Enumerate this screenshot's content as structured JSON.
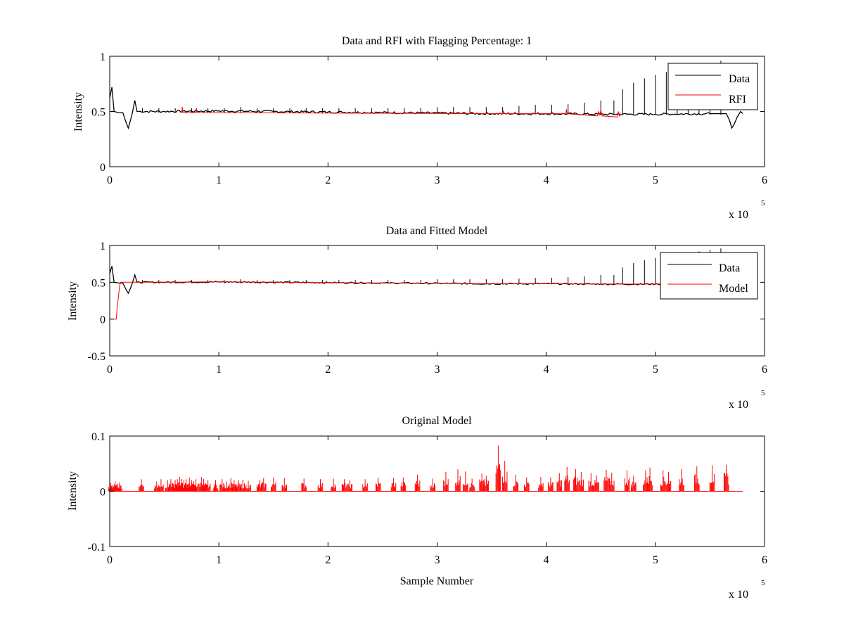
{
  "figure": {
    "background": "#ffffff",
    "colors": {
      "data": "#000000",
      "rfi": "#ff0000",
      "model": "#ff0000",
      "axes": "#000000"
    }
  },
  "chart_data": [
    {
      "type": "line",
      "title": "Data and RFI with Flagging Percentage: 1",
      "xlabel": "",
      "ylabel": "Intensity",
      "xlim": [
        0,
        600000
      ],
      "ylim": [
        0,
        1
      ],
      "xticks": [
        0,
        100000,
        200000,
        300000,
        400000,
        500000,
        600000
      ],
      "xtick_labels": [
        "0",
        "1",
        "2",
        "3",
        "4",
        "5",
        "6"
      ],
      "yticks": [
        0,
        0.5,
        1
      ],
      "ytick_labels": [
        "0",
        "0.5",
        "1"
      ],
      "x_multiplier": {
        "base": "x 10",
        "exponent": "5"
      },
      "grid": false,
      "legend": {
        "position": "top-right",
        "entries": [
          "Data",
          "RFI"
        ]
      },
      "series": [
        {
          "name": "Data",
          "color": "#000000",
          "x": [
            0,
            2000,
            4000,
            8000,
            12000,
            15000,
            17000,
            19000,
            21000,
            23000,
            25000,
            50000,
            100000,
            150000,
            200000,
            250000,
            300000,
            350000,
            400000,
            450000,
            500000,
            550000,
            565000,
            568000,
            570000,
            572000,
            575000,
            578000,
            580000
          ],
          "y": [
            0.62,
            0.72,
            0.5,
            0.49,
            0.49,
            0.4,
            0.35,
            0.42,
            0.5,
            0.6,
            0.5,
            0.5,
            0.505,
            0.5,
            0.495,
            0.49,
            0.485,
            0.48,
            0.48,
            0.475,
            0.475,
            0.48,
            0.48,
            0.42,
            0.35,
            0.38,
            0.45,
            0.5,
            0.48
          ],
          "spike_x": [
            30000,
            45000,
            60000,
            75000,
            90000,
            105000,
            120000,
            135000,
            150000,
            165000,
            180000,
            195000,
            210000,
            225000,
            240000,
            255000,
            270000,
            285000,
            300000,
            315000,
            330000,
            345000,
            360000,
            375000,
            390000,
            405000,
            420000,
            435000,
            450000,
            462000,
            470000,
            480000,
            490000,
            500000,
            510000,
            520000,
            530000,
            540000,
            550000,
            560000
          ],
          "spike_y": [
            0.53,
            0.53,
            0.53,
            0.53,
            0.53,
            0.53,
            0.54,
            0.53,
            0.53,
            0.53,
            0.53,
            0.53,
            0.53,
            0.53,
            0.53,
            0.53,
            0.53,
            0.53,
            0.54,
            0.54,
            0.54,
            0.54,
            0.54,
            0.55,
            0.56,
            0.56,
            0.57,
            0.58,
            0.6,
            0.6,
            0.7,
            0.76,
            0.8,
            0.83,
            0.86,
            0.88,
            0.9,
            0.92,
            0.94,
            0.96
          ]
        },
        {
          "name": "RFI",
          "color": "#ff0000",
          "x": [
            66000,
            66500,
            67000,
            79000,
            79500,
            80000,
            360000,
            360500,
            361000,
            418000,
            418500,
            419000,
            447000,
            448000,
            449000,
            450000,
            451000,
            465000,
            466000,
            467000,
            468000
          ],
          "y": [
            0.49,
            0.54,
            0.49,
            0.49,
            0.53,
            0.49,
            0.48,
            0.51,
            0.48,
            0.48,
            0.52,
            0.48,
            0.46,
            0.5,
            0.47,
            0.51,
            0.46,
            0.45,
            0.5,
            0.46,
            0.49
          ]
        }
      ]
    },
    {
      "type": "line",
      "title": "Data and Fitted Model",
      "xlabel": "",
      "ylabel": "Intensity",
      "xlim": [
        0,
        600000
      ],
      "ylim": [
        -0.5,
        1
      ],
      "xticks": [
        0,
        100000,
        200000,
        300000,
        400000,
        500000,
        600000
      ],
      "xtick_labels": [
        "0",
        "1",
        "2",
        "3",
        "4",
        "5",
        "6"
      ],
      "yticks": [
        -0.5,
        0,
        0.5,
        1
      ],
      "ytick_labels": [
        "-0.5",
        "0",
        "0.5",
        "1"
      ],
      "x_multiplier": {
        "base": "x 10",
        "exponent": "5"
      },
      "grid": false,
      "legend": {
        "position": "top-right",
        "entries": [
          "Data",
          "Model"
        ]
      },
      "series": [
        {
          "name": "Data",
          "color": "#000000",
          "x": [
            0,
            2000,
            4000,
            8000,
            12000,
            15000,
            17000,
            19000,
            21000,
            23000,
            25000,
            50000,
            100000,
            150000,
            200000,
            250000,
            300000,
            350000,
            400000,
            450000,
            500000,
            550000,
            580000
          ],
          "y": [
            0.62,
            0.72,
            0.5,
            0.49,
            0.49,
            0.4,
            0.35,
            0.42,
            0.5,
            0.6,
            0.5,
            0.5,
            0.505,
            0.5,
            0.495,
            0.49,
            0.485,
            0.48,
            0.48,
            0.475,
            0.475,
            0.48,
            0.48
          ],
          "spike_x": [
            30000,
            45000,
            60000,
            75000,
            90000,
            105000,
            120000,
            135000,
            150000,
            165000,
            180000,
            195000,
            210000,
            225000,
            240000,
            255000,
            270000,
            285000,
            300000,
            315000,
            330000,
            345000,
            360000,
            375000,
            390000,
            405000,
            420000,
            435000,
            450000,
            462000,
            470000,
            480000,
            490000,
            500000,
            510000,
            520000,
            530000,
            540000,
            550000,
            560000
          ],
          "spike_y": [
            0.53,
            0.53,
            0.53,
            0.53,
            0.53,
            0.53,
            0.54,
            0.53,
            0.53,
            0.53,
            0.53,
            0.53,
            0.53,
            0.53,
            0.53,
            0.53,
            0.53,
            0.53,
            0.54,
            0.54,
            0.54,
            0.54,
            0.54,
            0.55,
            0.56,
            0.56,
            0.57,
            0.58,
            0.6,
            0.6,
            0.7,
            0.76,
            0.8,
            0.83,
            0.86,
            0.88,
            0.9,
            0.92,
            0.94,
            0.96
          ]
        },
        {
          "name": "Model",
          "color": "#ff0000",
          "x": [
            0,
            6000,
            7000,
            8000,
            9000,
            10000,
            12000,
            20000,
            50000,
            100000,
            150000,
            200000,
            250000,
            300000,
            350000,
            400000,
            450000,
            500000,
            550000,
            580000
          ],
          "y": [
            0,
            0,
            0.2,
            0.3,
            0.45,
            0.5,
            0.5,
            0.5,
            0.5,
            0.505,
            0.5,
            0.495,
            0.49,
            0.485,
            0.48,
            0.48,
            0.475,
            0.475,
            0.48,
            0.48
          ]
        }
      ]
    },
    {
      "type": "line",
      "title": "Original Model",
      "xlabel": "Sample Number",
      "ylabel": "Intensity",
      "xlim": [
        0,
        600000
      ],
      "ylim": [
        -0.1,
        0.1
      ],
      "xticks": [
        0,
        100000,
        200000,
        300000,
        400000,
        500000,
        600000
      ],
      "xtick_labels": [
        "0",
        "1",
        "2",
        "3",
        "4",
        "5",
        "6"
      ],
      "yticks": [
        -0.1,
        0,
        0.1
      ],
      "ytick_labels": [
        "-0.1",
        "0",
        "0.1"
      ],
      "x_multiplier": {
        "base": "x 10",
        "exponent": "5"
      },
      "grid": false,
      "legend": null,
      "series": [
        {
          "color": "#ff0000",
          "baseline": 0,
          "x_end": 580000,
          "spike_x": [
            1000,
            3000,
            5000,
            7000,
            9000,
            29000,
            43000,
            47000,
            53000,
            56000,
            60000,
            62000,
            64000,
            66000,
            68000,
            70000,
            73000,
            75000,
            77000,
            79000,
            84000,
            86000,
            90000,
            97000,
            103000,
            107000,
            111000,
            114000,
            118000,
            122000,
            127000,
            137000,
            141000,
            150000,
            160000,
            178000,
            193000,
            205000,
            215000,
            220000,
            234000,
            246000,
            260000,
            269000,
            282000,
            296000,
            308000,
            319000,
            326000,
            332000,
            341000,
            345000,
            356000,
            362000,
            372000,
            382000,
            395000,
            404000,
            412000,
            419000,
            427000,
            432000,
            441000,
            446000,
            455000,
            460000,
            474000,
            480000,
            491000,
            495000,
            507000,
            512000,
            524000,
            538000,
            552000,
            565000
          ],
          "spike_y": [
            0.015,
            0.012,
            0.018,
            0.014,
            0.016,
            0.022,
            0.018,
            0.022,
            0.02,
            0.022,
            0.02,
            0.022,
            0.026,
            0.022,
            0.02,
            0.022,
            0.025,
            0.02,
            0.018,
            0.022,
            0.026,
            0.022,
            0.02,
            0.02,
            0.022,
            0.018,
            0.024,
            0.02,
            0.02,
            0.021,
            0.019,
            0.02,
            0.024,
            0.025,
            0.024,
            0.023,
            0.022,
            0.023,
            0.022,
            0.02,
            0.022,
            0.025,
            0.024,
            0.025,
            0.03,
            0.023,
            0.035,
            0.04,
            0.036,
            0.023,
            0.032,
            0.028,
            0.083,
            0.055,
            0.03,
            0.025,
            0.026,
            0.025,
            0.033,
            0.044,
            0.04,
            0.035,
            0.033,
            0.029,
            0.039,
            0.034,
            0.038,
            0.028,
            0.038,
            0.043,
            0.038,
            0.035,
            0.04,
            0.045,
            0.047,
            0.048
          ]
        }
      ]
    }
  ]
}
